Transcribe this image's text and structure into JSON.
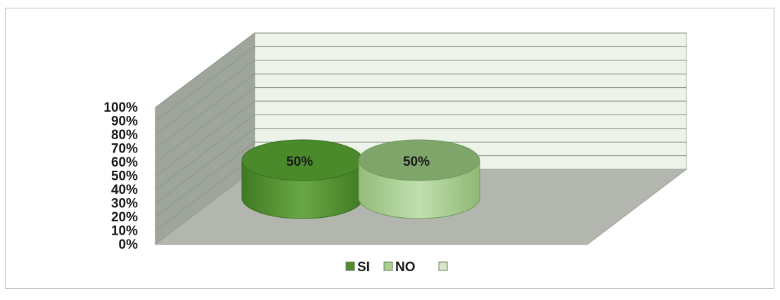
{
  "chart_data": {
    "type": "bar",
    "style": "3d-cylinder",
    "categories": [
      "SI",
      "NO",
      ""
    ],
    "values": [
      50,
      50,
      null
    ],
    "value_labels": [
      "50%",
      "50%",
      ""
    ],
    "ylim": [
      0,
      100
    ],
    "y_ticks": [
      "0%",
      "10%",
      "20%",
      "30%",
      "40%",
      "50%",
      "60%",
      "70%",
      "80%",
      "90%",
      "100%"
    ],
    "grid": true,
    "legend": {
      "position": "bottom",
      "entries": [
        "SI",
        "NO",
        ""
      ]
    },
    "colors": {
      "SI": "#4e8c2c",
      "NO": "#a9d08e",
      "empty": "#d6e6c8",
      "back_wall": "#eef3ea",
      "side_wall": "#9ea59a",
      "floor": "#b2b6ae"
    }
  }
}
